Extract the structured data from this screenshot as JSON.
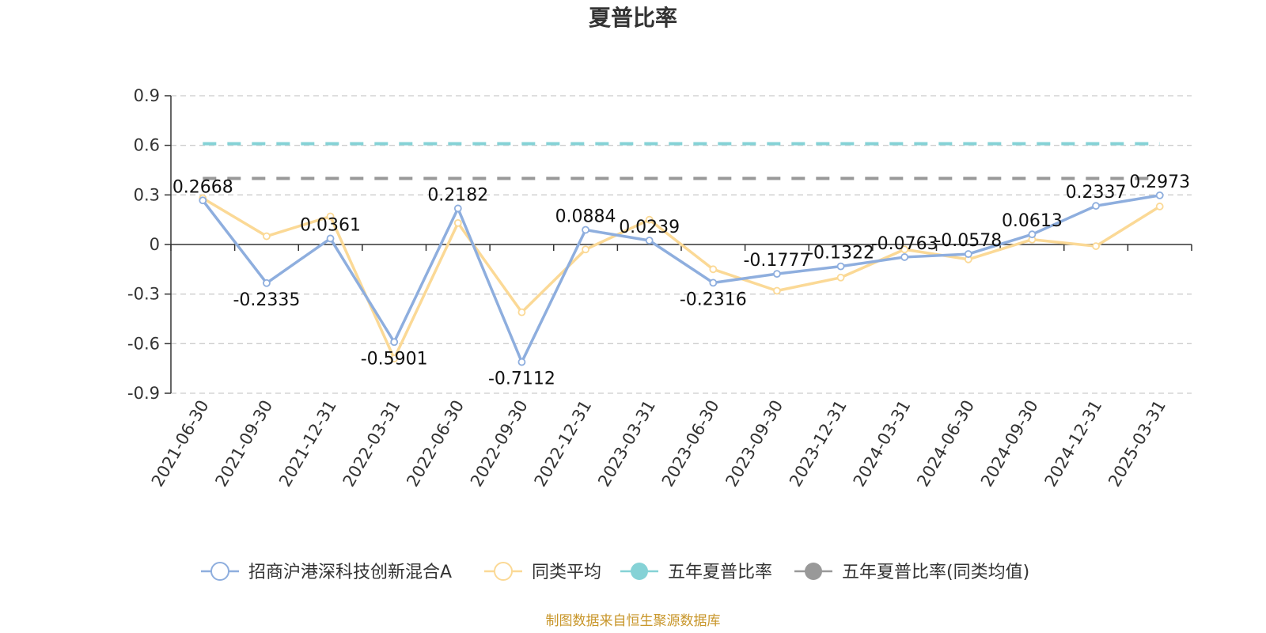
{
  "chart_data": {
    "type": "line",
    "title": "夏普比率",
    "categories": [
      "2021-06-30",
      "2021-09-30",
      "2021-12-31",
      "2022-03-31",
      "2022-06-30",
      "2022-09-30",
      "2022-12-31",
      "2023-03-31",
      "2023-06-30",
      "2023-09-30",
      "2023-12-31",
      "2024-03-31",
      "2024-06-30",
      "2024-09-30",
      "2024-12-31",
      "2025-03-31"
    ],
    "y_ticks": [
      "0.9",
      "0.6",
      "0.3",
      "0",
      "-0.3",
      "-0.6",
      "-0.9"
    ],
    "ylim": [
      -0.9,
      0.9
    ],
    "grid": true,
    "legend_position": "bottom",
    "series": [
      {
        "name": "招商沪港深科技创新混合A",
        "color": "#8eaede",
        "values": [
          0.2668,
          -0.2335,
          0.0361,
          -0.5901,
          0.2182,
          -0.7112,
          0.0884,
          0.0239,
          -0.2316,
          -0.1777,
          -0.1322,
          -0.0763,
          -0.0578,
          0.0613,
          0.2337,
          0.2973
        ],
        "labels": [
          "0.2668",
          "-0.2335",
          "0.0361",
          "-0.5901",
          "0.2182",
          "-0.7112",
          "0.0884",
          "0.0239",
          "-0.2316",
          "-0.1777",
          "-0.1322",
          "-0.0763",
          "-0.0578",
          "0.0613",
          "0.2337",
          "0.2973"
        ]
      },
      {
        "name": "同类平均",
        "color": "#fbd996",
        "values": [
          0.28,
          0.05,
          0.17,
          -0.69,
          0.13,
          -0.41,
          -0.03,
          0.15,
          -0.15,
          -0.28,
          -0.2,
          -0.03,
          -0.09,
          0.03,
          -0.01,
          0.23
        ]
      },
      {
        "name": "五年夏普比率",
        "color": "#85d2d6",
        "constant": 0.61
      },
      {
        "name": "五年夏普比率(同类均值)",
        "color": "#999999",
        "constant": 0.4
      }
    ],
    "source": "制图数据来自恒生聚源数据库"
  }
}
